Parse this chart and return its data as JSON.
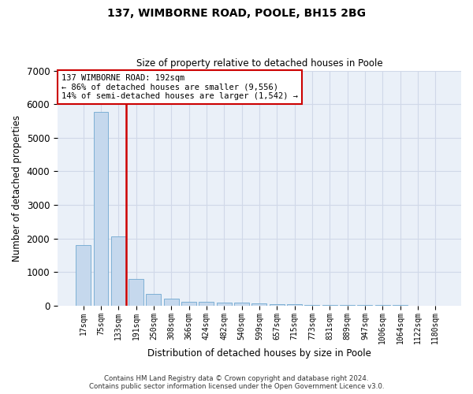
{
  "title1": "137, WIMBORNE ROAD, POOLE, BH15 2BG",
  "title2": "Size of property relative to detached houses in Poole",
  "xlabel": "Distribution of detached houses by size in Poole",
  "ylabel": "Number of detached properties",
  "categories": [
    "17sqm",
    "75sqm",
    "133sqm",
    "191sqm",
    "250sqm",
    "308sqm",
    "366sqm",
    "424sqm",
    "482sqm",
    "540sqm",
    "599sqm",
    "657sqm",
    "715sqm",
    "773sqm",
    "831sqm",
    "889sqm",
    "947sqm",
    "1006sqm",
    "1064sqm",
    "1122sqm",
    "1180sqm"
  ],
  "values": [
    1790,
    5760,
    2060,
    800,
    355,
    205,
    120,
    100,
    95,
    75,
    55,
    50,
    30,
    20,
    15,
    10,
    8,
    6,
    5,
    4,
    3
  ],
  "bar_color": "#c5d8ed",
  "bar_edgecolor": "#6fa8d0",
  "highlight_bar_idx": 2,
  "highlight_color": "#cc0000",
  "annotation_line1": "137 WIMBORNE ROAD: 192sqm",
  "annotation_line2": "← 86% of detached houses are smaller (9,556)",
  "annotation_line3": "14% of semi-detached houses are larger (1,542) →",
  "annotation_box_color": "#cc0000",
  "annotation_bg": "#ffffff",
  "ylim": [
    0,
    7000
  ],
  "yticks": [
    0,
    1000,
    2000,
    3000,
    4000,
    5000,
    6000,
    7000
  ],
  "grid_color": "#d0d8e8",
  "bg_color": "#eaf0f8",
  "footer1": "Contains HM Land Registry data © Crown copyright and database right 2024.",
  "footer2": "Contains public sector information licensed under the Open Government Licence v3.0."
}
